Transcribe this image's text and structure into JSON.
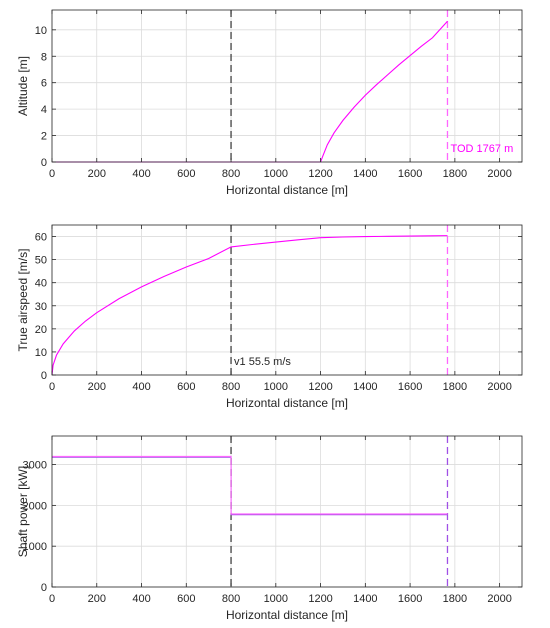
{
  "chart_data": [
    {
      "type": "line",
      "xlabel": "Horizontal distance [m]",
      "ylabel": "Altitude [m]",
      "xlim": [
        0,
        2100
      ],
      "ylim": [
        0,
        11.5
      ],
      "xticks": [
        0,
        200,
        400,
        600,
        800,
        1000,
        1200,
        1400,
        1600,
        1800,
        2000
      ],
      "yticks": [
        0,
        2,
        4,
        6,
        8,
        10
      ],
      "grid": true,
      "series": [
        {
          "color": "#ff00ff",
          "x": [
            0,
            1200,
            1210,
            1230,
            1260,
            1300,
            1350,
            1400,
            1450,
            1500,
            1550,
            1600,
            1650,
            1700,
            1767
          ],
          "y": [
            0,
            0,
            0.45,
            1.3,
            2.2,
            3.15,
            4.15,
            5.05,
            5.85,
            6.6,
            7.35,
            8.05,
            8.75,
            9.4,
            10.65
          ]
        }
      ],
      "vlines": [
        {
          "x": 800,
          "color": "#404040",
          "style": "dashed"
        },
        {
          "x": 1767,
          "color": "#ff66ff",
          "style": "dashed"
        }
      ],
      "annotations": [
        {
          "text": "TOD 1767 m",
          "x": 1767,
          "y": 0.6,
          "color": "#ff00ff"
        }
      ]
    },
    {
      "type": "line",
      "xlabel": "Horizontal distance [m]",
      "ylabel": "True airspeed [m/s]",
      "xlim": [
        0,
        2100
      ],
      "ylim": [
        0,
        65
      ],
      "xticks": [
        0,
        200,
        400,
        600,
        800,
        1000,
        1200,
        1400,
        1600,
        1800,
        2000
      ],
      "yticks": [
        0,
        10,
        20,
        30,
        40,
        50,
        60
      ],
      "grid": true,
      "series": [
        {
          "color": "#ff00ff",
          "x": [
            0,
            5,
            20,
            50,
            100,
            150,
            200,
            300,
            400,
            500,
            600,
            700,
            800,
            900,
            1000,
            1100,
            1200,
            1300,
            1400,
            1500,
            1600,
            1700,
            1767
          ],
          "y": [
            0,
            4.3,
            8.6,
            13.5,
            19.1,
            23.4,
            27.0,
            33.1,
            38.2,
            42.7,
            46.8,
            50.5,
            55.5,
            56.6,
            57.6,
            58.6,
            59.5,
            59.8,
            60.0,
            60.1,
            60.2,
            60.3,
            60.4
          ]
        }
      ],
      "vlines": [
        {
          "x": 800,
          "color": "#404040",
          "style": "dashed"
        },
        {
          "x": 1767,
          "color": "#ff66ff",
          "style": "dashed"
        }
      ],
      "annotations": [
        {
          "text": "v1 55.5 m/s",
          "x": 800,
          "y": 3.5,
          "color": "#262626"
        }
      ]
    },
    {
      "type": "line",
      "xlabel": "Horizontal distance [m]",
      "ylabel": "Shaft power [kW]",
      "xlim": [
        0,
        2100
      ],
      "ylim": [
        0,
        3700
      ],
      "xticks": [
        0,
        200,
        400,
        600,
        800,
        1000,
        1200,
        1400,
        1600,
        1800,
        2000
      ],
      "yticks": [
        0,
        1000,
        2000,
        3000
      ],
      "grid": true,
      "series": [
        {
          "color": "#a050e6",
          "x": [
            0,
            800,
            800,
            1767
          ],
          "y": [
            3180,
            3180,
            1770,
            1770
          ]
        },
        {
          "color": "#ff66ff",
          "x": [
            0,
            800,
            800,
            1767
          ],
          "y": [
            3200,
            3200,
            1790,
            1790
          ]
        }
      ],
      "vlines": [
        {
          "x": 800,
          "color": "#404040",
          "style": "dashed"
        },
        {
          "x": 1767,
          "color": "#a050e6",
          "style": "dashed"
        }
      ],
      "annotations": []
    }
  ]
}
